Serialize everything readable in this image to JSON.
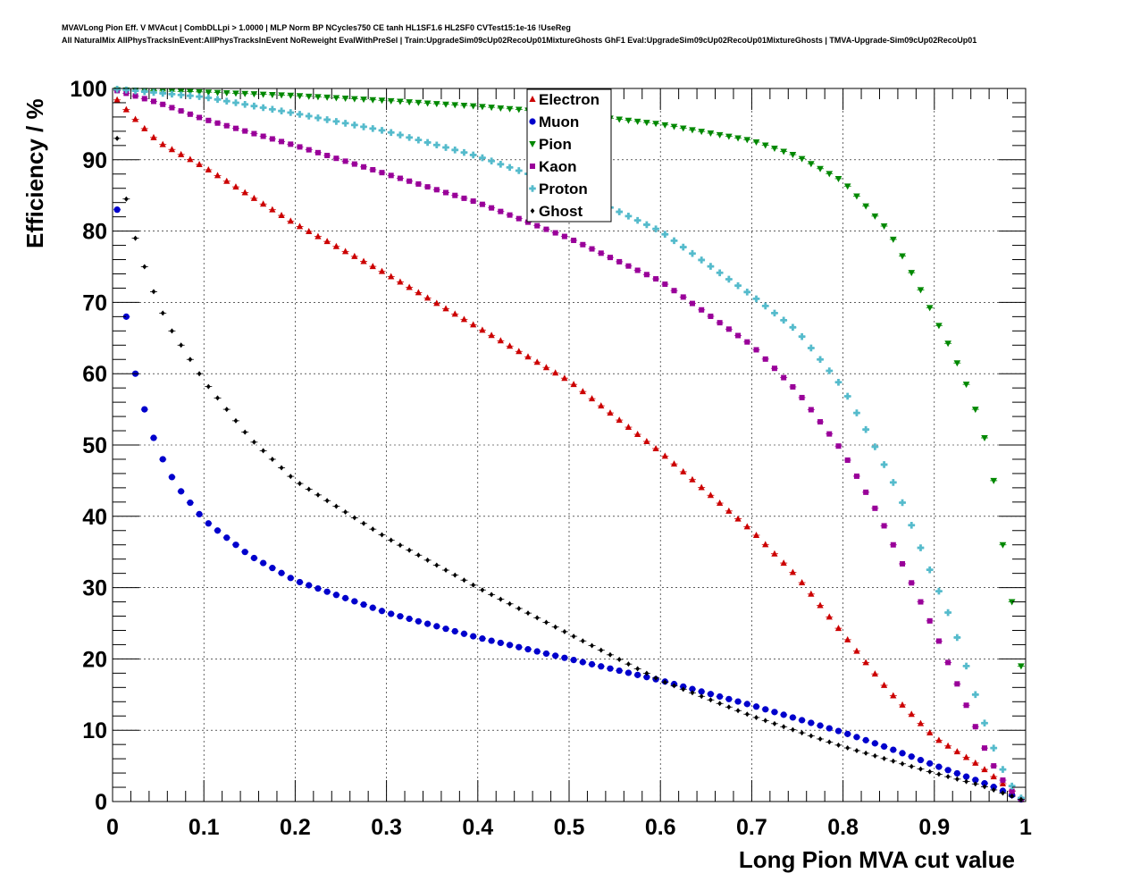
{
  "header": {
    "line1": "MVAVLong Pion Eff. V MVAcut | CombDLLpi > 1.0000 | MLP Norm BP NCycles750 CE tanh HL1SF1.6 HL2SF0 CVTest15:1e-16 !UseReg",
    "line2": "All NaturalMix AllPhysTracksInEvent:AllPhysTracksInEvent NoReweight EvalWithPreSel | Train:UpgradeSim09cUp02RecoUp01MixtureGhosts GhF1 Eval:UpgradeSim09cUp02RecoUp01MixtureGhosts | TMVA-Upgrade-Sim09cUp02RecoUp01"
  },
  "chart_data": {
    "type": "scatter",
    "xlabel": "Long Pion MVA cut value",
    "ylabel": "Efficiency / %",
    "xlim": [
      0,
      1
    ],
    "ylim": [
      0,
      100
    ],
    "xticks": [
      "0",
      "0.1",
      "0.2",
      "0.3",
      "0.4",
      "0.5",
      "0.6",
      "0.7",
      "0.8",
      "0.9",
      "1"
    ],
    "yticks": [
      "0",
      "10",
      "20",
      "30",
      "40",
      "50",
      "60",
      "70",
      "80",
      "90",
      "100"
    ],
    "grid": true,
    "legend_position": "top-center",
    "x_step": 0.01,
    "series": [
      {
        "name": "Electron",
        "color": "#cc0000",
        "marker": "triangle-up",
        "anchors": [
          [
            0.005,
            98.4
          ],
          [
            0.03,
            95
          ],
          [
            0.05,
            92.5
          ],
          [
            0.1,
            89
          ],
          [
            0.15,
            85
          ],
          [
            0.2,
            81
          ],
          [
            0.3,
            74
          ],
          [
            0.4,
            66.5
          ],
          [
            0.5,
            59
          ],
          [
            0.6,
            49
          ],
          [
            0.7,
            38
          ],
          [
            0.75,
            31.5
          ],
          [
            0.8,
            23.5
          ],
          [
            0.85,
            15.5
          ],
          [
            0.9,
            9
          ],
          [
            0.95,
            5
          ],
          [
            0.97,
            3
          ],
          [
            0.99,
            1
          ],
          [
            0.995,
            0.3
          ]
        ]
      },
      {
        "name": "Muon",
        "color": "#0000cc",
        "marker": "circle",
        "anchors": [
          [
            0.005,
            83
          ],
          [
            0.015,
            68
          ],
          [
            0.025,
            60
          ],
          [
            0.035,
            55
          ],
          [
            0.045,
            51
          ],
          [
            0.055,
            48
          ],
          [
            0.065,
            45.5
          ],
          [
            0.075,
            43.5
          ],
          [
            0.1,
            39.5
          ],
          [
            0.15,
            34.5
          ],
          [
            0.2,
            31
          ],
          [
            0.3,
            26.5
          ],
          [
            0.4,
            23
          ],
          [
            0.5,
            20
          ],
          [
            0.6,
            17
          ],
          [
            0.7,
            13.5
          ],
          [
            0.8,
            9.7
          ],
          [
            0.85,
            7.5
          ],
          [
            0.9,
            5.1
          ],
          [
            0.95,
            2.8
          ],
          [
            0.97,
            1.8
          ],
          [
            0.995,
            0.3
          ]
        ]
      },
      {
        "name": "Pion",
        "color": "#008800",
        "marker": "triangle-down",
        "anchors": [
          [
            0.005,
            99.8
          ],
          [
            0.1,
            99.5
          ],
          [
            0.2,
            99
          ],
          [
            0.3,
            98.3
          ],
          [
            0.4,
            97.5
          ],
          [
            0.5,
            96.5
          ],
          [
            0.6,
            95
          ],
          [
            0.7,
            92.7
          ],
          [
            0.75,
            90.5
          ],
          [
            0.8,
            87
          ],
          [
            0.85,
            80
          ],
          [
            0.88,
            73
          ],
          [
            0.9,
            68
          ],
          [
            0.92,
            63
          ],
          [
            0.94,
            57
          ],
          [
            0.955,
            51
          ],
          [
            0.965,
            45
          ],
          [
            0.975,
            36
          ],
          [
            0.985,
            28
          ],
          [
            0.995,
            19
          ]
        ]
      },
      {
        "name": "Kaon",
        "color": "#990099",
        "marker": "square",
        "anchors": [
          [
            0.005,
            99.7
          ],
          [
            0.05,
            98
          ],
          [
            0.1,
            95.7
          ],
          [
            0.2,
            92
          ],
          [
            0.3,
            88
          ],
          [
            0.4,
            84
          ],
          [
            0.5,
            79
          ],
          [
            0.6,
            73
          ],
          [
            0.7,
            64
          ],
          [
            0.75,
            57.5
          ],
          [
            0.8,
            49
          ],
          [
            0.84,
            40
          ],
          [
            0.87,
            32
          ],
          [
            0.9,
            24
          ],
          [
            0.92,
            18
          ],
          [
            0.94,
            12
          ],
          [
            0.96,
            6
          ],
          [
            0.98,
            2
          ],
          [
            0.995,
            0.3
          ]
        ]
      },
      {
        "name": "Proton",
        "color": "#55bbcc",
        "marker": "cross",
        "anchors": [
          [
            0.005,
            99.9
          ],
          [
            0.1,
            98.8
          ],
          [
            0.2,
            96.5
          ],
          [
            0.3,
            94
          ],
          [
            0.4,
            90.5
          ],
          [
            0.5,
            86
          ],
          [
            0.6,
            80
          ],
          [
            0.7,
            71
          ],
          [
            0.75,
            66
          ],
          [
            0.8,
            58
          ],
          [
            0.83,
            51
          ],
          [
            0.86,
            43.5
          ],
          [
            0.89,
            34
          ],
          [
            0.92,
            25
          ],
          [
            0.94,
            17
          ],
          [
            0.96,
            9
          ],
          [
            0.98,
            3
          ],
          [
            0.995,
            0.5
          ]
        ]
      },
      {
        "name": "Ghost",
        "color": "#000000",
        "marker": "diamond",
        "anchors": [
          [
            0.005,
            93
          ],
          [
            0.015,
            84.5
          ],
          [
            0.025,
            79
          ],
          [
            0.035,
            75
          ],
          [
            0.045,
            71.5
          ],
          [
            0.055,
            68.5
          ],
          [
            0.065,
            66
          ],
          [
            0.1,
            59
          ],
          [
            0.15,
            51
          ],
          [
            0.2,
            45
          ],
          [
            0.3,
            37
          ],
          [
            0.4,
            30
          ],
          [
            0.5,
            23.5
          ],
          [
            0.6,
            17
          ],
          [
            0.7,
            12
          ],
          [
            0.8,
            7.7
          ],
          [
            0.9,
            4
          ],
          [
            0.95,
            2.3
          ],
          [
            0.995,
            0.3
          ]
        ]
      }
    ]
  }
}
